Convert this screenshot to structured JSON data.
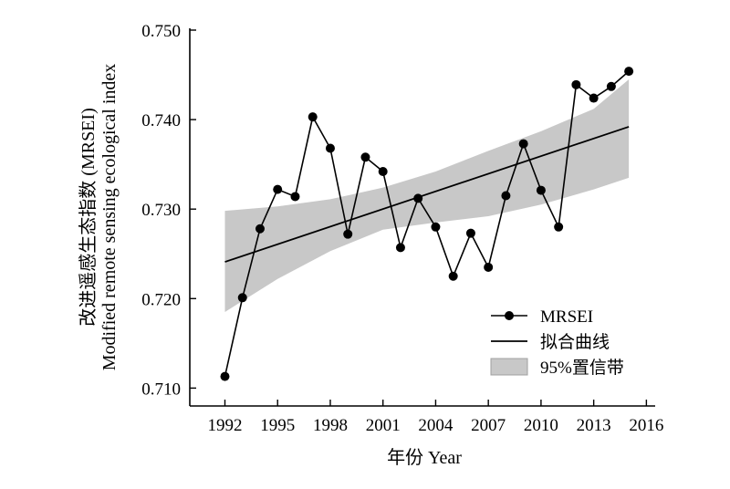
{
  "chart_data": {
    "type": "line",
    "xlabel": "年份 Year",
    "ylabel_cn": "改进遥感生态指数 (MRSEI)",
    "ylabel_en": "Modified remote sensing ecological index",
    "xlim": [
      1990,
      2016.5
    ],
    "ylim": [
      0.708,
      0.75
    ],
    "xticks": [
      1992,
      1995,
      1998,
      2001,
      2004,
      2007,
      2010,
      2013,
      2016
    ],
    "yticks": [
      0.71,
      0.72,
      0.73,
      0.74,
      0.75
    ],
    "ytick_labels": [
      "0.710",
      "0.720",
      "0.730",
      "0.740",
      "0.750"
    ],
    "legend_position": "bottom-right",
    "series": [
      {
        "name": "MRSEI",
        "style": "line-markers",
        "x": [
          1992,
          1993,
          1994,
          1995,
          1996,
          1997,
          1998,
          1999,
          2000,
          2001,
          2002,
          2003,
          2004,
          2005,
          2006,
          2007,
          2008,
          2009,
          2010,
          2011,
          2012,
          2013,
          2014,
          2015
        ],
        "y": [
          0.7113,
          0.7201,
          0.7278,
          0.7322,
          0.7314,
          0.7403,
          0.7368,
          0.7272,
          0.7358,
          0.7342,
          0.7257,
          0.7312,
          0.728,
          0.7225,
          0.7273,
          0.7235,
          0.7315,
          0.7373,
          0.7321,
          0.728,
          0.7439,
          0.7424,
          0.7437,
          0.7454
        ]
      },
      {
        "name": "拟合曲线",
        "style": "line",
        "x": [
          1992,
          2015
        ],
        "y": [
          0.7241,
          0.7392
        ]
      },
      {
        "name": "95%置信带",
        "style": "band",
        "x": [
          1992,
          1995,
          1998,
          2001,
          2004,
          2007,
          2010,
          2013,
          2015
        ],
        "lower": [
          0.7185,
          0.7222,
          0.7253,
          0.7277,
          0.7285,
          0.7292,
          0.7305,
          0.7322,
          0.7335
        ],
        "upper": [
          0.7298,
          0.7303,
          0.7311,
          0.7324,
          0.7342,
          0.7365,
          0.7387,
          0.7412,
          0.7445
        ]
      }
    ]
  },
  "colors": {
    "line": "#000000",
    "marker": "#000000",
    "band_fill": "#c8c8c8",
    "band_edge": "#a0a0a0"
  }
}
